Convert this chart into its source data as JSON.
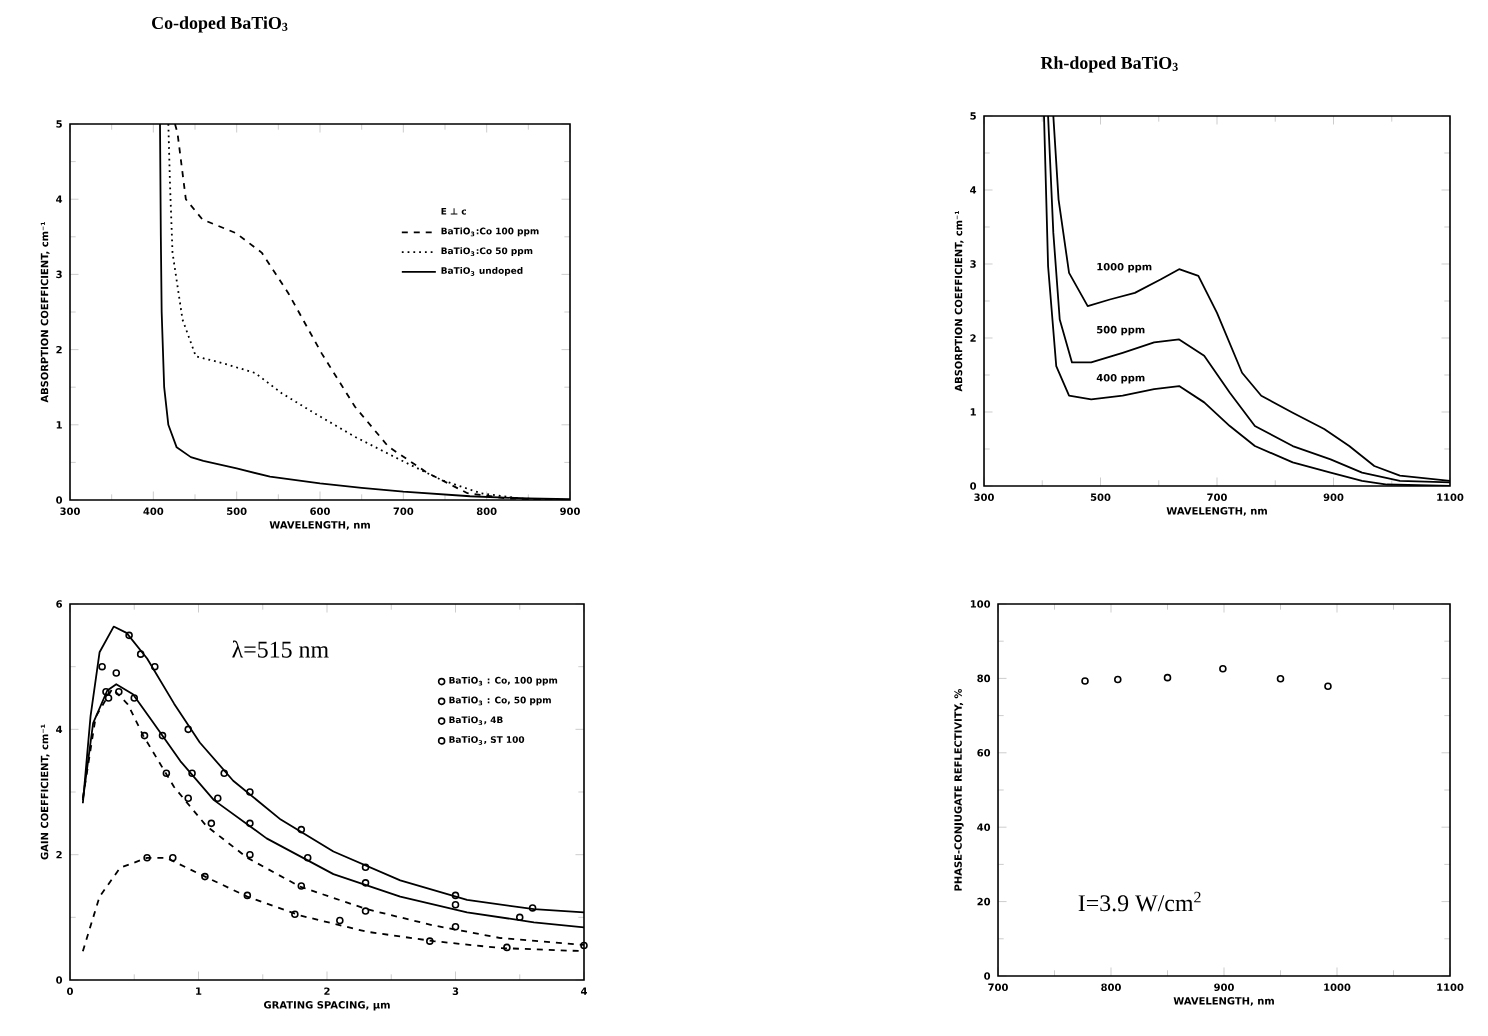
{
  "chart_data": [
    {
      "type": "line",
      "title": "Co-doped BaTiO$_{3}$",
      "xlabel": "WAVELENGTH, nm",
      "ylabel": "ABSORPTION COEFFICIENT, cm⁻¹",
      "xlim": [
        300,
        900
      ],
      "ylim": [
        0,
        5
      ],
      "xticks": [
        300,
        400,
        500,
        600,
        700,
        800,
        900
      ],
      "yticks": [
        0,
        1,
        2,
        3,
        4,
        5
      ],
      "legend": "right",
      "legend_title": "E ⊥ c",
      "series": [
        {
          "name": "BaTiO$_{3}$:Co 100 ppm",
          "color": "#000000",
          "line_style": "dashed",
          "x": [
            426,
            429,
            439,
            459,
            499,
            530,
            562,
            602,
            642,
            682,
            729,
            777,
            825,
            900
          ],
          "values": [
            5,
            4.88,
            4.0,
            3.73,
            3.55,
            3.29,
            2.75,
            1.95,
            1.24,
            0.71,
            0.36,
            0.09,
            0.02,
            0.0
          ]
        },
        {
          "name": "BaTiO$_{3}$:Co 50 ppm",
          "color": "#000000",
          "line_style": "dotted",
          "x": [
            418,
            420,
            423,
            435,
            451,
            483,
            522,
            554,
            594,
            642,
            697,
            745,
            793,
            840,
            900
          ],
          "values": [
            5,
            4.2,
            3.29,
            2.4,
            1.91,
            1.82,
            1.69,
            1.42,
            1.15,
            0.84,
            0.53,
            0.27,
            0.09,
            0.02,
            0.0
          ]
        },
        {
          "name": "BaTiO$_{3}$ undoped",
          "color": "#000000",
          "line_style": "solid",
          "x": [
            408,
            409,
            410,
            413,
            418,
            428,
            445,
            460,
            500,
            540,
            600,
            650,
            700,
            780,
            850,
            900
          ],
          "values": [
            5,
            3.5,
            2.5,
            1.5,
            1.0,
            0.7,
            0.57,
            0.52,
            0.42,
            0.31,
            0.22,
            0.16,
            0.11,
            0.05,
            0.02,
            0.01
          ]
        }
      ]
    },
    {
      "type": "line",
      "title": "Rh-doped BaTiO$_{3}$",
      "xlabel": "WAVELENGTH, nm",
      "ylabel": "ABSORPTION COEFFICIENT, cm⁻¹",
      "xlim": [
        300,
        1100
      ],
      "ylim": [
        0,
        5
      ],
      "xticks": [
        300,
        500,
        700,
        900,
        1100
      ],
      "yticks": [
        0,
        1,
        2,
        3,
        4,
        5
      ],
      "annotations": [
        "1000 ppm",
        "500 ppm",
        "400 ppm"
      ],
      "series": [
        {
          "color": "#000000",
          "x": [
            419,
            428,
            446,
            478,
            516,
            559,
            603,
            635,
            668,
            700,
            743,
            776,
            830,
            884,
            927,
            970,
            1014,
            1100
          ],
          "values": [
            5,
            3.87,
            2.88,
            2.43,
            2.52,
            2.61,
            2.79,
            2.93,
            2.84,
            2.34,
            1.53,
            1.22,
            0.99,
            0.77,
            0.54,
            0.27,
            0.14,
            0.07
          ]
        },
        {
          "color": "#000000",
          "x": [
            410,
            419,
            430,
            451,
            484,
            538,
            592,
            635,
            678,
            722,
            765,
            830,
            895,
            949,
            1014,
            1100
          ],
          "values": [
            5,
            3.42,
            2.25,
            1.67,
            1.67,
            1.8,
            1.94,
            1.98,
            1.76,
            1.26,
            0.81,
            0.54,
            0.36,
            0.18,
            0.07,
            0.05
          ]
        },
        {
          "color": "#000000",
          "x": [
            403,
            410,
            424,
            446,
            484,
            538,
            592,
            635,
            678,
            722,
            765,
            830,
            895,
            949,
            992,
            1100
          ],
          "values": [
            5,
            2.97,
            1.62,
            1.22,
            1.17,
            1.22,
            1.31,
            1.35,
            1.13,
            0.81,
            0.54,
            0.32,
            0.18,
            0.07,
            0.02,
            0.0
          ]
        }
      ]
    },
    {
      "type": "line",
      "xlabel": "GRATING SPACING, µm",
      "ylabel": "GAIN COEFFICIENT, cm⁻¹",
      "xlim": [
        0,
        4
      ],
      "ylim": [
        0,
        6
      ],
      "xticks": [
        0,
        1,
        2,
        3,
        4
      ],
      "yticks": [
        0,
        2,
        4,
        6
      ],
      "legend": "top right",
      "annotations": [
        "λ=515 nm"
      ],
      "series": [
        {
          "name": "BaTiO$_{3}$ : Co, 100 ppm",
          "type": "scatter",
          "marker": "circle",
          "color": "#000000",
          "x": [
            0.25,
            0.46,
            0.55,
            0.66,
            0.92,
            1.2,
            1.4,
            1.8,
            2.3,
            3.0,
            3.6
          ],
          "values": [
            5.0,
            5.5,
            5.2,
            5.0,
            4.0,
            3.3,
            3.0,
            2.4,
            1.8,
            1.35,
            1.15
          ]
        },
        {
          "name": "BaTiO$_{3}$ : Co, 50 ppm",
          "type": "scatter",
          "marker": "circle",
          "color": "#000000",
          "x": [
            0.28,
            0.36,
            0.5,
            0.72,
            0.95,
            1.15,
            1.4,
            1.85,
            2.3,
            3.0,
            3.5
          ],
          "values": [
            4.6,
            4.9,
            4.5,
            3.9,
            3.3,
            2.9,
            2.5,
            1.95,
            1.55,
            1.2,
            1.0
          ]
        },
        {
          "name": "BaTiO$_{3}$, 4B",
          "type": "scatter",
          "marker": "circle",
          "color": "#000000",
          "x": [
            0.3,
            0.38,
            0.58,
            0.75,
            0.92,
            1.1,
            1.4,
            1.8,
            2.3,
            3.0,
            4.0
          ],
          "values": [
            4.5,
            4.6,
            3.9,
            3.3,
            2.9,
            2.5,
            2.0,
            1.5,
            1.1,
            0.85,
            0.55
          ]
        },
        {
          "name": "BaTiO$_{3}$, ST 100",
          "type": "scatter",
          "marker": "circle",
          "color": "#000000",
          "x": [
            0.6,
            0.8,
            1.05,
            1.38,
            1.75,
            2.1,
            2.8,
            3.4
          ],
          "values": [
            1.95,
            1.95,
            1.65,
            1.35,
            1.05,
            0.95,
            0.62,
            0.52
          ]
        },
        {
          "color": "#000000",
          "line_style": "solid",
          "x": [
            0.1,
            0.16,
            0.23,
            0.34,
            0.44,
            0.6,
            0.81,
            1.01,
            1.27,
            1.64,
            2.05,
            2.57,
            3.09,
            3.61,
            4.0
          ],
          "values": [
            2.82,
            4.21,
            5.23,
            5.64,
            5.54,
            5.13,
            4.41,
            3.79,
            3.18,
            2.56,
            2.05,
            1.59,
            1.28,
            1.13,
            1.08
          ]
        },
        {
          "color": "#000000",
          "line_style": "solid",
          "x": [
            0.1,
            0.18,
            0.29,
            0.36,
            0.49,
            0.65,
            0.86,
            1.12,
            1.53,
            2.05,
            2.57,
            3.09,
            3.61,
            4.0
          ],
          "values": [
            2.87,
            4.1,
            4.62,
            4.72,
            4.56,
            4.1,
            3.49,
            2.87,
            2.26,
            1.69,
            1.33,
            1.08,
            0.92,
            0.84
          ]
        },
        {
          "color": "#000000",
          "line_style": "dashed",
          "x": [
            0.1,
            0.2,
            0.33,
            0.45,
            0.57,
            0.81,
            1.06,
            1.38,
            1.79,
            2.31,
            2.83,
            3.35,
            4.0
          ],
          "values": [
            2.9,
            4.2,
            4.65,
            4.4,
            3.9,
            3.08,
            2.46,
            1.95,
            1.49,
            1.13,
            0.87,
            0.67,
            0.56
          ]
        },
        {
          "color": "#000000",
          "line_style": "dashed",
          "x": [
            0.1,
            0.23,
            0.39,
            0.6,
            0.75,
            1.01,
            1.38,
            1.79,
            2.31,
            2.83,
            3.35,
            4.0
          ],
          "values": [
            0.46,
            1.33,
            1.79,
            1.95,
            1.95,
            1.69,
            1.33,
            1.03,
            0.77,
            0.62,
            0.51,
            0.46
          ]
        }
      ]
    },
    {
      "type": "scatter",
      "xlabel": "WAVELENGTH, nm",
      "ylabel": "PHASE-CONJUGATE REFLECTIVITY, %",
      "xlim": [
        700,
        1100
      ],
      "ylim": [
        0,
        100
      ],
      "xticks": [
        700,
        800,
        900,
        1000,
        1100
      ],
      "yticks": [
        0,
        20,
        40,
        60,
        80,
        100
      ],
      "marker": "circle",
      "annotations": [
        "I=3.9 W/cm$^{2}$"
      ],
      "series": [
        {
          "color": "#000000",
          "x": [
            777,
            806,
            850,
            899,
            950,
            992
          ],
          "values": [
            79.3,
            79.7,
            80.2,
            82.6,
            79.9,
            77.9
          ]
        }
      ]
    }
  ]
}
